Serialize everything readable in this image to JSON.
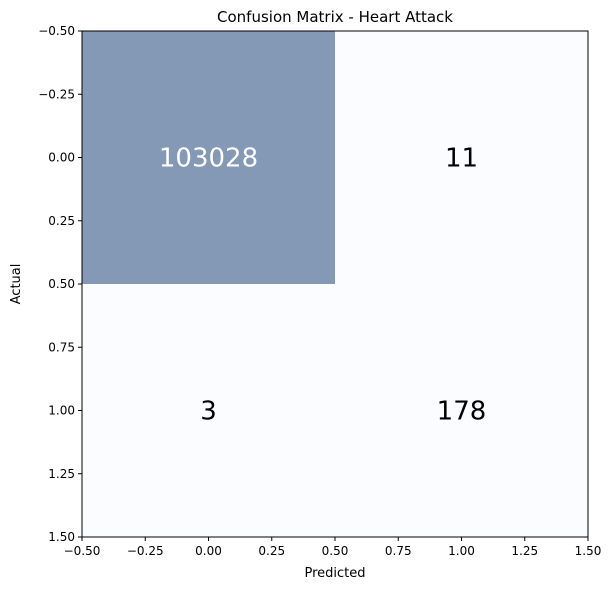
{
  "chart_data": {
    "type": "heatmap",
    "title": "Confusion Matrix - Heart Attack",
    "xlabel": "Predicted",
    "ylabel": "Actual",
    "xlim": [
      -0.5,
      1.5
    ],
    "ylim": [
      1.5,
      -0.5
    ],
    "xticks": [
      "−0.50",
      "−0.25",
      "0.00",
      "0.25",
      "0.50",
      "0.75",
      "1.00",
      "1.25",
      "1.50"
    ],
    "yticks": [
      "−0.50",
      "−0.25",
      "0.00",
      "0.25",
      "0.50",
      "0.75",
      "1.00",
      "1.25",
      "1.50"
    ],
    "grid": false,
    "matrix": [
      [
        103028,
        11
      ],
      [
        3,
        178
      ]
    ],
    "labels": [
      [
        "103028",
        "11"
      ],
      [
        "3",
        "178"
      ]
    ],
    "colors": {
      "high": "#8499b5",
      "low": "#fbfcff",
      "text_on_high": "#ffffff",
      "text_on_low": "#000000"
    }
  }
}
